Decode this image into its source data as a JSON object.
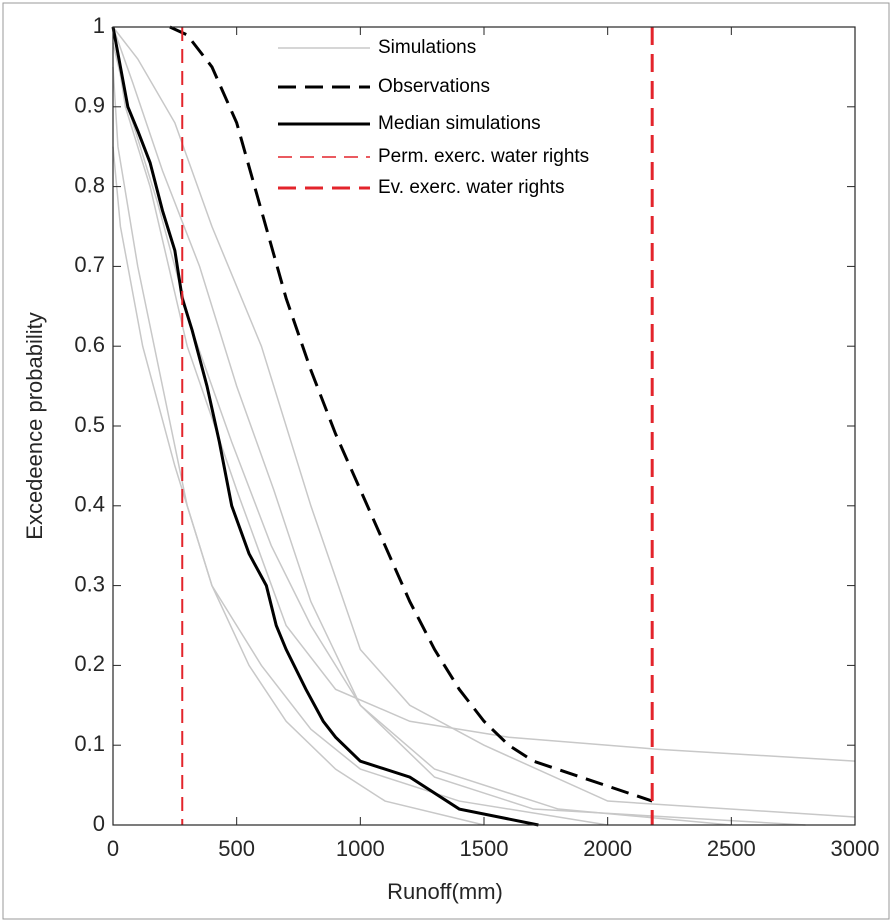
{
  "chart_data": {
    "type": "line",
    "xlabel": "Runoff(mm)",
    "ylabel": "Excedeence probability",
    "xlim": [
      0,
      3000
    ],
    "ylim": [
      0,
      1
    ],
    "xticks": [
      0,
      500,
      1000,
      1500,
      2000,
      2500,
      3000
    ],
    "yticks": [
      0,
      0.1,
      0.2,
      0.3,
      0.4,
      0.5,
      0.6,
      0.7,
      0.8,
      0.9,
      1
    ],
    "simulations": {
      "name": "Simulations",
      "color": "#c8c8c8",
      "lines": [
        {
          "x": [
            0,
            50,
            150,
            300,
            500,
            700,
            900,
            1200,
            1600,
            2200,
            3000
          ],
          "values": [
            1,
            0.9,
            0.8,
            0.6,
            0.42,
            0.25,
            0.17,
            0.13,
            0.11,
            0.095,
            0.08
          ]
        },
        {
          "x": [
            0,
            20,
            100,
            200,
            300,
            400,
            600,
            800,
            1000,
            1400,
            2000
          ],
          "values": [
            0.95,
            0.85,
            0.7,
            0.55,
            0.4,
            0.3,
            0.2,
            0.12,
            0.07,
            0.03,
            0
          ]
        },
        {
          "x": [
            0,
            80,
            200,
            350,
            500,
            650,
            800,
            1000,
            1300,
            1800,
            2500
          ],
          "values": [
            1,
            0.93,
            0.82,
            0.7,
            0.55,
            0.42,
            0.28,
            0.15,
            0.07,
            0.02,
            0
          ]
        },
        {
          "x": [
            0,
            30,
            120,
            250,
            400,
            550,
            700,
            900,
            1100,
            1500
          ],
          "values": [
            0.85,
            0.75,
            0.6,
            0.45,
            0.3,
            0.2,
            0.13,
            0.07,
            0.03,
            0
          ]
        },
        {
          "x": [
            0,
            100,
            250,
            400,
            600,
            800,
            1000,
            1200,
            1500,
            2000,
            3000
          ],
          "values": [
            1,
            0.96,
            0.88,
            0.75,
            0.6,
            0.4,
            0.22,
            0.15,
            0.1,
            0.03,
            0.01
          ]
        },
        {
          "x": [
            0,
            60,
            180,
            320,
            480,
            640,
            800,
            1000,
            1300,
            1700,
            2800
          ],
          "values": [
            0.98,
            0.9,
            0.78,
            0.62,
            0.48,
            0.35,
            0.25,
            0.15,
            0.06,
            0.02,
            0
          ]
        }
      ]
    },
    "series": [
      {
        "name": "Observations",
        "color": "#000000",
        "dashed": true,
        "x": [
          230,
          300,
          400,
          500,
          600,
          700,
          800,
          900,
          1000,
          1100,
          1200,
          1300,
          1400,
          1500,
          1600,
          1700,
          2180
        ],
        "values": [
          1,
          0.99,
          0.95,
          0.88,
          0.77,
          0.66,
          0.57,
          0.49,
          0.42,
          0.35,
          0.28,
          0.22,
          0.17,
          0.13,
          0.1,
          0.08,
          0.03
        ]
      },
      {
        "name": "Median simulations",
        "color": "#000000",
        "dashed": false,
        "x": [
          0,
          30,
          60,
          100,
          150,
          200,
          250,
          280,
          320,
          380,
          430,
          480,
          550,
          620,
          660,
          700,
          780,
          850,
          900,
          1000,
          1200,
          1400,
          1720
        ],
        "values": [
          1,
          0.95,
          0.9,
          0.87,
          0.83,
          0.77,
          0.72,
          0.66,
          0.62,
          0.55,
          0.48,
          0.4,
          0.34,
          0.3,
          0.25,
          0.22,
          0.17,
          0.13,
          0.11,
          0.08,
          0.06,
          0.02,
          0
        ]
      }
    ],
    "vlines": [
      {
        "name": "Perm. exerc. water rights",
        "x": 280,
        "color": "#e3242b",
        "thick": false
      },
      {
        "name": "Ev. exerc. water rights",
        "x": 2180,
        "color": "#e3242b",
        "thick": true
      }
    ]
  }
}
